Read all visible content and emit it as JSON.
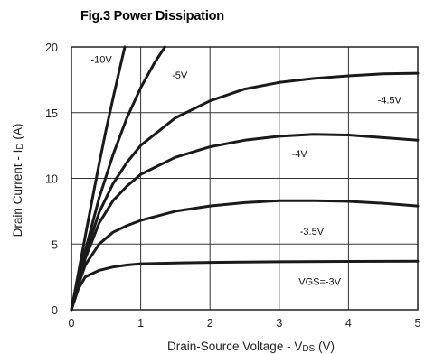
{
  "figure": {
    "title": "Fig.3  Power Dissipation"
  },
  "chart_data": {
    "type": "line",
    "title": "Fig.3  Power Dissipation",
    "xlabel": {
      "prefix": "Drain-Source Voltage - V",
      "sub": "DS",
      "suffix": " (V)"
    },
    "ylabel": {
      "prefix": "Drain Current - I",
      "sub": "D",
      "suffix": " (A)"
    },
    "xlim": [
      0,
      5
    ],
    "ylim": [
      0,
      20
    ],
    "x_ticks": [
      0,
      1,
      2,
      3,
      4,
      5
    ],
    "y_ticks": [
      0,
      5,
      10,
      15,
      20
    ],
    "grid": true,
    "legend": "none",
    "series": [
      {
        "label": "-10V",
        "points": [
          [
            0,
            0
          ],
          [
            0.1,
            2.8
          ],
          [
            0.2,
            5.6
          ],
          [
            0.3,
            8.4
          ],
          [
            0.4,
            11.1
          ],
          [
            0.5,
            13.7
          ],
          [
            0.6,
            16.1
          ],
          [
            0.7,
            18.4
          ],
          [
            0.77,
            20
          ]
        ],
        "label_pos": [
          0.28,
          18.8
        ]
      },
      {
        "label": "-5V",
        "points": [
          [
            0,
            0
          ],
          [
            0.1,
            2.3
          ],
          [
            0.2,
            4.5
          ],
          [
            0.4,
            8.5
          ],
          [
            0.6,
            11.8
          ],
          [
            0.8,
            14.6
          ],
          [
            1.0,
            16.9
          ],
          [
            1.2,
            18.8
          ],
          [
            1.35,
            20
          ]
        ],
        "label_pos": [
          1.45,
          17.6
        ]
      },
      {
        "label": "-4.5V",
        "points": [
          [
            0,
            0
          ],
          [
            0.1,
            2.2
          ],
          [
            0.2,
            4.2
          ],
          [
            0.4,
            7.4
          ],
          [
            0.6,
            9.6
          ],
          [
            0.8,
            11.2
          ],
          [
            1.0,
            12.5
          ],
          [
            1.5,
            14.6
          ],
          [
            2.0,
            15.9
          ],
          [
            2.5,
            16.8
          ],
          [
            3.0,
            17.3
          ],
          [
            3.5,
            17.6
          ],
          [
            4.0,
            17.8
          ],
          [
            4.5,
            17.95
          ],
          [
            5.0,
            18.0
          ]
        ],
        "label_pos": [
          4.42,
          15.7
        ]
      },
      {
        "label": "-4V",
        "points": [
          [
            0,
            0
          ],
          [
            0.1,
            2.1
          ],
          [
            0.2,
            3.9
          ],
          [
            0.4,
            6.6
          ],
          [
            0.6,
            8.3
          ],
          [
            0.8,
            9.4
          ],
          [
            1.0,
            10.3
          ],
          [
            1.5,
            11.6
          ],
          [
            2.0,
            12.4
          ],
          [
            2.5,
            12.9
          ],
          [
            3.0,
            13.2
          ],
          [
            3.5,
            13.35
          ],
          [
            4.0,
            13.3
          ],
          [
            4.5,
            13.1
          ],
          [
            5.0,
            12.9
          ]
        ],
        "label_pos": [
          3.18,
          11.6
        ]
      },
      {
        "label": "-3.5V",
        "points": [
          [
            0,
            0
          ],
          [
            0.1,
            1.9
          ],
          [
            0.2,
            3.4
          ],
          [
            0.4,
            5.0
          ],
          [
            0.6,
            5.9
          ],
          [
            0.8,
            6.4
          ],
          [
            1.0,
            6.8
          ],
          [
            1.5,
            7.5
          ],
          [
            2.0,
            7.9
          ],
          [
            2.5,
            8.15
          ],
          [
            3.0,
            8.3
          ],
          [
            3.5,
            8.3
          ],
          [
            4.0,
            8.25
          ],
          [
            4.5,
            8.1
          ],
          [
            5.0,
            7.9
          ]
        ],
        "label_pos": [
          3.3,
          5.7
        ]
      },
      {
        "label": "VGS=-3V",
        "points": [
          [
            0,
            0
          ],
          [
            0.1,
            1.6
          ],
          [
            0.2,
            2.5
          ],
          [
            0.4,
            3.0
          ],
          [
            0.6,
            3.25
          ],
          [
            0.8,
            3.4
          ],
          [
            1.0,
            3.5
          ],
          [
            1.5,
            3.55
          ],
          [
            2.0,
            3.6
          ],
          [
            3.0,
            3.65
          ],
          [
            4.0,
            3.68
          ],
          [
            5.0,
            3.7
          ]
        ],
        "label_pos": [
          3.28,
          1.9
        ]
      }
    ]
  }
}
